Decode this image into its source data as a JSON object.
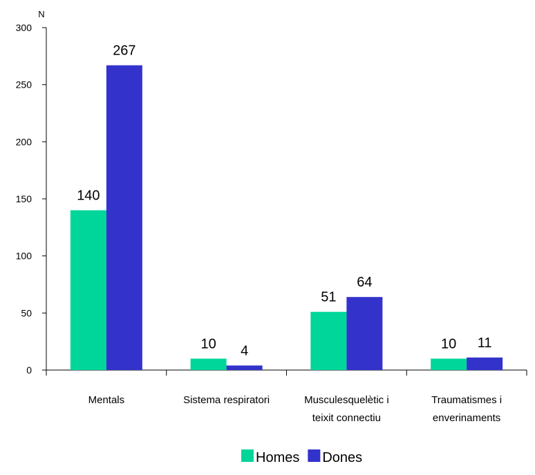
{
  "chart_data": {
    "type": "bar",
    "ylabel": "N",
    "ylim": [
      0,
      300
    ],
    "yticks": [
      0,
      50,
      100,
      150,
      200,
      250,
      300
    ],
    "categories": [
      [
        "Mentals"
      ],
      [
        "Sistema respiratori"
      ],
      [
        "Musculesquelètic i",
        "teixit connectiu"
      ],
      [
        "Traumatismes i",
        "enverinaments"
      ]
    ],
    "series": [
      {
        "name": "Homes",
        "color": "#00D69A",
        "values": [
          140,
          10,
          51,
          10
        ]
      },
      {
        "name": "Dones",
        "color": "#3333CC",
        "values": [
          267,
          4,
          64,
          11
        ]
      }
    ],
    "legend_position": "bottom",
    "grid": false
  }
}
